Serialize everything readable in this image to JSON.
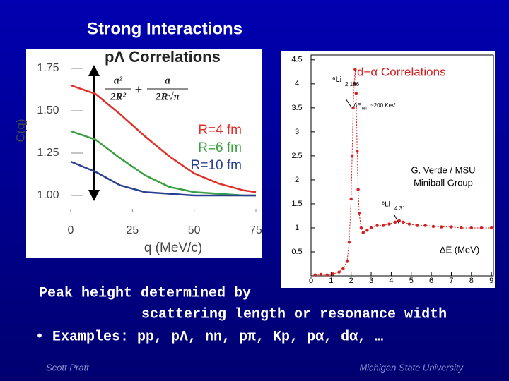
{
  "title": "Strong Interactions",
  "body": {
    "line1": "Peak height determined by",
    "line2": "scattering length or resonance width",
    "line3": "• Examples: pp, pΛ, nn, pπ, Kp, pα, dα, …"
  },
  "footer": {
    "left": "Scott Pratt",
    "right": "Michigan State University"
  },
  "chart_data": [
    {
      "type": "line",
      "title": "pΛ Correlations",
      "x_label": "q (MeV/c)",
      "y_label": "C(q)",
      "formula": {
        "num1": "a²",
        "den1": "2R²",
        "plus": "+",
        "num2": "a",
        "den2": "2R√π"
      },
      "x": [
        0,
        10,
        20,
        30,
        40,
        50,
        60,
        70,
        75
      ],
      "series": [
        {
          "name": "R=4 fm",
          "color": "#e0302a",
          "values": [
            1.65,
            1.6,
            1.48,
            1.35,
            1.23,
            1.13,
            1.07,
            1.03,
            1.02
          ]
        },
        {
          "name": "R=6 fm",
          "color": "#3aa040",
          "values": [
            1.38,
            1.33,
            1.22,
            1.12,
            1.05,
            1.02,
            1.01,
            1.0,
            1.0
          ]
        },
        {
          "name": "R=10 fm",
          "color": "#2a3f8f",
          "values": [
            1.2,
            1.14,
            1.06,
            1.02,
            1.01,
            1.0,
            1.0,
            1.0,
            1.0
          ]
        }
      ],
      "xlim": [
        0,
        77
      ],
      "xticks": [
        0,
        25,
        50,
        75
      ],
      "ylim": [
        0.9,
        1.85
      ],
      "yticks": [
        {
          "value": 1,
          "label": "1.00"
        },
        1.25,
        {
          "value": 1.5,
          "label": "1.50"
        },
        1.75
      ]
    },
    {
      "type": "line",
      "marker": "circle",
      "title": "d−α Correlations",
      "x_label": "ΔE (MeV)",
      "annotations": {
        "li_ground": "⁶Li",
        "li_ground_energy": "2.186",
        "width": "ΔE",
        "width_sub": "rel",
        "width_value": "~200 KeV",
        "li_excited": "⁶Li",
        "li_excited_energy": "4.31",
        "credit1": "G. Verde / MSU",
        "credit2": "Miniball Group"
      },
      "x": [
        0.2,
        0.5,
        0.8,
        1.1,
        1.4,
        1.6,
        1.8,
        1.9,
        2.0,
        2.05,
        2.1,
        2.15,
        2.2,
        2.25,
        2.3,
        2.35,
        2.4,
        2.5,
        2.6,
        2.8,
        3.0,
        3.3,
        3.6,
        3.9,
        4.2,
        4.4,
        4.6,
        4.9,
        5.3,
        5.7,
        6.1,
        6.5,
        7.0,
        7.5,
        8.0,
        8.5,
        9.0
      ],
      "series": [
        {
          "name": "d−α",
          "color": "#d42020",
          "values": [
            0.02,
            0.03,
            0.02,
            0.04,
            0.08,
            0.15,
            0.3,
            0.7,
            1.6,
            2.5,
            3.5,
            4.0,
            4.3,
            3.8,
            2.6,
            1.8,
            1.3,
            1.0,
            0.9,
            0.95,
            1.0,
            1.05,
            1.05,
            1.08,
            1.12,
            1.15,
            1.12,
            1.08,
            1.05,
            1.05,
            1.03,
            1.02,
            1.02,
            1.0,
            1.0,
            1.0,
            1.0
          ]
        }
      ],
      "xlim": [
        0,
        9.1
      ],
      "xticks": [
        0,
        1,
        2,
        3,
        4,
        5,
        6,
        7,
        8,
        9
      ],
      "ylim": [
        0,
        4.6
      ],
      "yticks": [
        0.5,
        1,
        1.5,
        2,
        2.5,
        3,
        3.5,
        4,
        4.5
      ]
    }
  ]
}
